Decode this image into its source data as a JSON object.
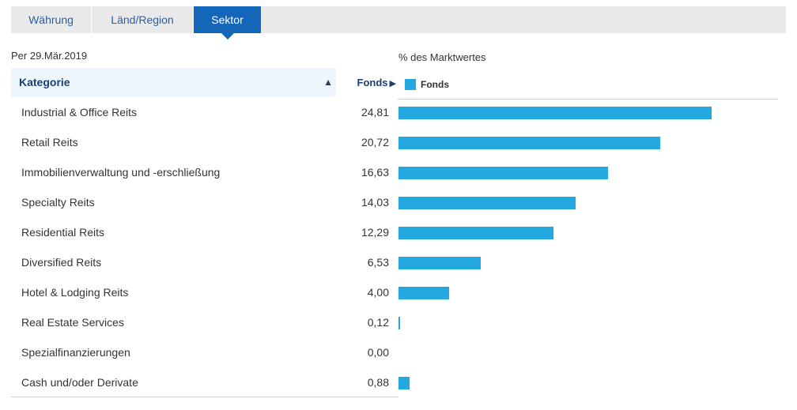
{
  "tabs": [
    {
      "label": "Währung",
      "active": false
    },
    {
      "label": "Länd/Region",
      "active": false
    },
    {
      "label": "Sektor",
      "active": true
    }
  ],
  "as_of": "Per 29.Mär.2019",
  "table": {
    "category_header": "Kategorie",
    "fonds_header": "Fonds",
    "sort_icon": "triangle-up-icon",
    "fonds_header_icon": "triangle-right-icon"
  },
  "colors": {
    "bar": "#23a8e0",
    "active_tab": "#1466b8",
    "header_text": "#1b3f73"
  },
  "chart_data": {
    "type": "bar",
    "orientation": "horizontal",
    "title": "% des Marktwertes",
    "legend": [
      {
        "name": "Fonds",
        "color": "#23a8e0"
      }
    ],
    "legend_position": "top-left",
    "xlim": [
      0,
      25
    ],
    "grid": false,
    "categories": [
      "Industrial & Office Reits",
      "Retail Reits",
      "Immobilienverwaltung und -erschließung",
      "Specialty Reits",
      "Residential Reits",
      "Diversified Reits",
      "Hotel & Lodging Reits",
      "Real Estate Services",
      "Spezialfinanzierungen",
      "Cash und/oder Derivate"
    ],
    "series": [
      {
        "name": "Fonds",
        "values": [
          24.81,
          20.72,
          16.63,
          14.03,
          12.29,
          6.53,
          4.0,
          0.12,
          0.0,
          0.88
        ]
      }
    ],
    "value_labels": [
      "24,81",
      "20,72",
      "16,63",
      "14,03",
      "12,29",
      "6,53",
      "4,00",
      "0,12",
      "0,00",
      "0,88"
    ]
  }
}
